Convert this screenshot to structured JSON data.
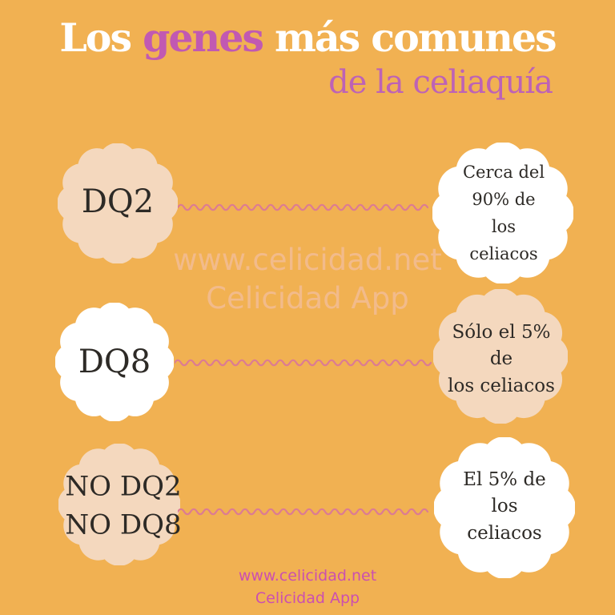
{
  "title": {
    "line1_part1": "Los ",
    "line1_highlight": "genes",
    "line1_part2": " más comunes",
    "line2": "de la celiaquía"
  },
  "rows": [
    {
      "gene": "DQ2",
      "result": "Cerca del\n90% de\nlos\nceliacos"
    },
    {
      "gene": "DQ8",
      "result": "Sólo el 5% de\nlos celiacos"
    },
    {
      "gene": "NO DQ2\nNO DQ8",
      "result": "El 5% de los\nceliacos"
    }
  ],
  "watermark": {
    "line1": "www.celicidad.net",
    "line2": "Celicidad App"
  },
  "footer": {
    "line1": "www.celicidad.net",
    "line2": "Celicidad App"
  },
  "colors": {
    "background": "#f1b152",
    "magenta": "#c159b2",
    "magenta2": "#bd62b6",
    "title-white": "#ffffff",
    "petal-peach": "#f4d8be",
    "petal-white": "#ffffff",
    "ink": "#2d2a26",
    "wave-pink": "#dc7b93",
    "watermark": "#f3bd95",
    "footer-pink": "#cb4fb0"
  }
}
